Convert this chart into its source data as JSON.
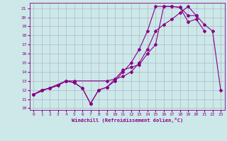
{
  "xlabel": "Windchill (Refroidissement éolien,°C)",
  "bg_color": "#cce8e8",
  "grid_color": "#b0b8cc",
  "line_color": "#880088",
  "xlim": [
    -0.5,
    23.5
  ],
  "ylim": [
    9.8,
    21.6
  ],
  "xticks": [
    0,
    1,
    2,
    3,
    4,
    5,
    6,
    7,
    8,
    9,
    10,
    11,
    12,
    13,
    14,
    15,
    16,
    17,
    18,
    19,
    20,
    21,
    22,
    23
  ],
  "yticks": [
    10,
    11,
    12,
    13,
    14,
    15,
    16,
    17,
    18,
    19,
    20,
    21
  ],
  "line1_x": [
    0,
    1,
    2,
    3,
    4,
    5,
    6,
    7,
    8,
    9,
    10,
    11,
    12,
    13,
    14,
    15,
    16,
    17,
    18,
    19,
    20,
    21
  ],
  "line1_y": [
    11.5,
    12.0,
    12.2,
    12.5,
    13.0,
    12.8,
    12.2,
    10.5,
    12.0,
    12.3,
    13.0,
    14.0,
    15.0,
    16.5,
    18.5,
    21.2,
    21.2,
    21.2,
    21.1,
    19.5,
    19.8,
    18.5
  ],
  "line2_x": [
    0,
    1,
    2,
    3,
    4,
    5,
    6,
    7,
    8,
    9,
    10,
    11,
    12,
    13,
    14,
    15,
    16,
    17,
    18,
    19,
    20
  ],
  "line2_y": [
    11.5,
    12.0,
    12.2,
    12.5,
    13.0,
    12.8,
    12.2,
    10.5,
    12.0,
    12.3,
    13.2,
    14.2,
    14.5,
    14.8,
    16.0,
    17.0,
    21.2,
    21.2,
    21.1,
    20.2,
    20.2
  ],
  "line3_x": [
    0,
    4,
    5,
    9,
    10,
    11,
    12,
    13,
    14,
    15,
    16,
    17,
    18,
    19,
    20,
    21,
    22,
    23
  ],
  "line3_y": [
    11.5,
    13.0,
    13.0,
    13.0,
    13.2,
    13.5,
    14.0,
    15.0,
    16.5,
    18.5,
    19.2,
    19.8,
    20.5,
    21.2,
    20.2,
    19.2,
    18.5,
    12.0
  ]
}
